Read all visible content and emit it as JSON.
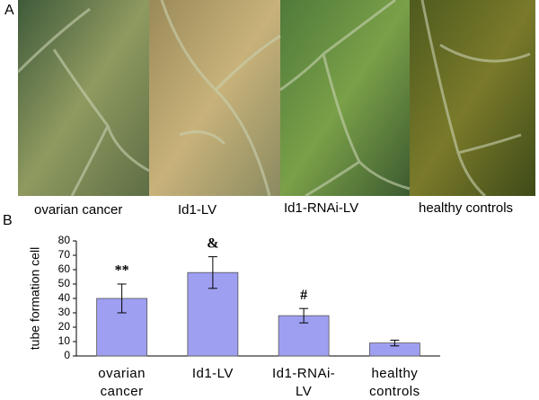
{
  "panel_a": {
    "label": "A",
    "captions": [
      "ovarian cancer",
      "Id1-LV",
      "Id1-RNAi-LV",
      "healthy controls"
    ]
  },
  "panel_b_label": "B",
  "chart_data": {
    "type": "bar",
    "ylabel": "tube formation cell",
    "categories": [
      "ovarian\ncancer",
      "Id1-LV",
      "Id1-RNAi-\nLV",
      "healthy\ncontrols"
    ],
    "values": [
      40,
      58,
      28,
      9
    ],
    "errors": [
      10,
      11,
      5,
      2
    ],
    "annotations": [
      "**",
      "&",
      "#",
      null
    ],
    "color": "#9f9ff2",
    "ylim": [
      0,
      80
    ],
    "yticks": [
      0,
      10,
      20,
      30,
      40,
      50,
      60,
      70,
      80
    ],
    "grid": false
  }
}
